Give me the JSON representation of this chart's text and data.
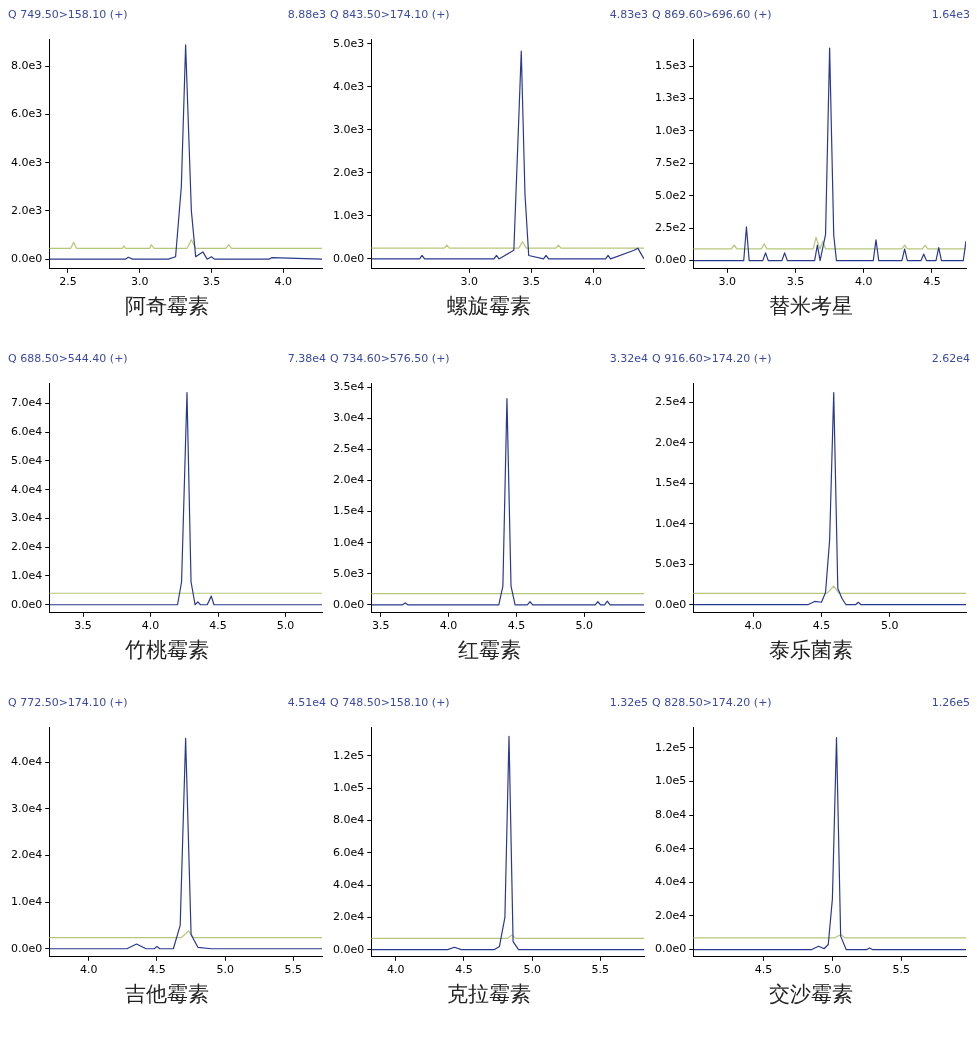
{
  "chart_data": [
    {
      "type": "line",
      "title": "Q 749.50>158.10 (+)",
      "annotations": [
        "8.88e3"
      ],
      "xlabel": "阿奇霉素",
      "xlim": [
        2.37,
        4.27
      ],
      "xticks": [
        2.5,
        {
          "value": 3,
          "label": "3.0"
        },
        3.5,
        {
          "value": 4,
          "label": "4.0"
        }
      ],
      "ylim": [
        -400,
        9100
      ],
      "yticks": [
        {
          "value": 0,
          "label": "0.0e0"
        },
        {
          "value": 2000,
          "label": "2.0e3"
        },
        {
          "value": 4000,
          "label": "4.0e3"
        },
        {
          "value": 6000,
          "label": "6.0e3"
        },
        {
          "value": 8000,
          "label": "8.0e3"
        }
      ],
      "series": [
        {
          "color": "#2a3990",
          "x": [
            2.37,
            2.9,
            2.92,
            2.95,
            3.0,
            3.2,
            3.25,
            3.29,
            3.32,
            3.36,
            3.39,
            3.44,
            3.47,
            3.5,
            3.52,
            3.9,
            3.92,
            4.27
          ],
          "values": [
            0,
            0,
            80,
            0,
            0,
            0,
            100,
            3000,
            8880,
            2000,
            100,
            300,
            0,
            100,
            0,
            0,
            60,
            0
          ]
        },
        {
          "color": "#b5c77a",
          "x": [
            2.37,
            2.52,
            2.54,
            2.56,
            2.88,
            2.89,
            2.9,
            3.07,
            3.08,
            3.1,
            3.33,
            3.36,
            3.39,
            3.6,
            3.62,
            3.64,
            4.27
          ],
          "values": [
            450,
            450,
            700,
            450,
            450,
            550,
            450,
            450,
            600,
            450,
            450,
            800,
            450,
            450,
            600,
            450,
            450
          ]
        }
      ]
    },
    {
      "type": "line",
      "title": "Q 843.50>174.10 (+)",
      "annotations": [
        "4.83e3"
      ],
      "xlabel": "螺旋霉素",
      "xlim": [
        2.21,
        4.41
      ],
      "xticks": [
        {
          "value": 3,
          "label": "3.0"
        },
        3.5,
        {
          "value": 4,
          "label": "4.0"
        }
      ],
      "ylim": [
        -230,
        5100
      ],
      "yticks": [
        {
          "value": 0,
          "label": "0.0e0"
        },
        {
          "value": 1000,
          "label": "1.0e3"
        },
        {
          "value": 2000,
          "label": "2.0e3"
        },
        {
          "value": 3000,
          "label": "3.0e3"
        },
        {
          "value": 4000,
          "label": "4.0e3"
        },
        {
          "value": 5000,
          "label": "5.0e3"
        }
      ],
      "series": [
        {
          "color": "#2a3990",
          "x": [
            2.21,
            2.6,
            2.62,
            2.64,
            3.2,
            3.22,
            3.24,
            3.36,
            3.39,
            3.42,
            3.45,
            3.48,
            3.6,
            3.62,
            3.64,
            4.1,
            4.12,
            4.14,
            4.33,
            4.36,
            4.39,
            4.41
          ],
          "values": [
            0,
            0,
            80,
            0,
            0,
            80,
            0,
            200,
            2500,
            4830,
            1500,
            80,
            0,
            80,
            0,
            0,
            80,
            0,
            200,
            250,
            100,
            0
          ]
        },
        {
          "color": "#b5c77a",
          "x": [
            2.21,
            2.8,
            2.82,
            2.84,
            3.4,
            3.43,
            3.46,
            3.7,
            3.72,
            3.74,
            4.41
          ],
          "values": [
            250,
            250,
            320,
            250,
            250,
            400,
            250,
            250,
            320,
            250,
            250
          ]
        }
      ]
    },
    {
      "type": "line",
      "title": "Q 869.60>696.60 (+)",
      "annotations": [
        "1.64e3"
      ],
      "xlabel": "替米考星",
      "xlim": [
        2.75,
        4.75
      ],
      "xticks": [
        {
          "value": 3,
          "label": "3.0"
        },
        3.5,
        {
          "value": 4,
          "label": "4.0"
        },
        4.5
      ],
      "ylim": [
        -63,
        1705
      ],
      "yticks": [
        {
          "value": 0,
          "label": "0.0e0"
        },
        {
          "value": 250,
          "label": "2.5e2"
        },
        {
          "value": 500,
          "label": "5.0e2"
        },
        {
          "value": 750,
          "label": "7.5e2"
        },
        {
          "value": 1000,
          "label": "1.0e3"
        },
        {
          "value": 1250,
          "label": "1.3e3"
        },
        {
          "value": 1500,
          "label": "1.5e3"
        }
      ],
      "series": [
        {
          "color": "#2a3990",
          "x": [
            2.75,
            3.12,
            3.14,
            3.16,
            3.26,
            3.28,
            3.3,
            3.4,
            3.42,
            3.44,
            3.64,
            3.66,
            3.68,
            3.72,
            3.75,
            3.78,
            3.8,
            4.07,
            4.09,
            4.11,
            4.28,
            4.3,
            4.32,
            4.42,
            4.44,
            4.46,
            4.53,
            4.55,
            4.57,
            4.73,
            4.75
          ],
          "values": [
            0,
            0,
            260,
            0,
            0,
            60,
            0,
            0,
            60,
            0,
            0,
            120,
            0,
            200,
            1640,
            200,
            0,
            0,
            160,
            0,
            0,
            90,
            0,
            0,
            50,
            0,
            0,
            100,
            0,
            0,
            150
          ]
        },
        {
          "color": "#b5c77a",
          "x": [
            2.75,
            3.03,
            3.05,
            3.07,
            3.25,
            3.27,
            3.29,
            3.63,
            3.65,
            3.68,
            3.7,
            3.72,
            4.28,
            4.3,
            4.32,
            4.43,
            4.45,
            4.47,
            4.75
          ],
          "values": [
            90,
            90,
            120,
            90,
            90,
            130,
            90,
            90,
            180,
            90,
            150,
            90,
            90,
            120,
            90,
            90,
            120,
            90,
            90
          ]
        }
      ]
    },
    {
      "type": "line",
      "title": "Q 688.50>544.40 (+)",
      "annotations": [
        "7.38e4"
      ],
      "xlabel": "竹桃霉素",
      "xlim": [
        3.25,
        5.27
      ],
      "xticks": [
        3.5,
        {
          "value": 4,
          "label": "4.0"
        },
        4.5,
        {
          "value": 5,
          "label": "5.0"
        }
      ],
      "ylim": [
        -2800,
        76900
      ],
      "yticks": [
        {
          "value": 0,
          "label": "0.0e0"
        },
        {
          "value": 10000,
          "label": "1.0e4"
        },
        {
          "value": 20000,
          "label": "2.0e4"
        },
        {
          "value": 30000,
          "label": "3.0e4"
        },
        {
          "value": 40000,
          "label": "4.0e4"
        },
        {
          "value": 50000,
          "label": "5.0e4"
        },
        {
          "value": 60000,
          "label": "6.0e4"
        },
        {
          "value": 70000,
          "label": "7.0e4"
        }
      ],
      "series": [
        {
          "color": "#2a3990",
          "x": [
            3.25,
            4.2,
            4.23,
            4.27,
            4.3,
            4.33,
            4.35,
            4.37,
            4.42,
            4.45,
            4.47,
            5.27
          ],
          "values": [
            0,
            0,
            8000,
            73800,
            8000,
            0,
            1000,
            0,
            0,
            3000,
            0,
            0
          ]
        },
        {
          "color": "#b5c77a",
          "x": [
            3.25,
            5.27
          ],
          "values": [
            4000,
            4000
          ]
        }
      ]
    },
    {
      "type": "line",
      "title": "Q 734.60>576.50 (+)",
      "annotations": [
        "3.32e4"
      ],
      "xlabel": "红霉素",
      "xlim": [
        3.43,
        5.44
      ],
      "xticks": [
        3.5,
        {
          "value": 4,
          "label": "4.0"
        },
        4.5,
        {
          "value": 5,
          "label": "5.0"
        }
      ],
      "ylim": [
        -1280,
        35600
      ],
      "yticks": [
        {
          "value": 0,
          "label": "0.0e0"
        },
        {
          "value": 5000,
          "label": "5.0e3"
        },
        {
          "value": 10000,
          "label": "1.0e4"
        },
        {
          "value": 15000,
          "label": "1.5e4"
        },
        {
          "value": 20000,
          "label": "2.0e4"
        },
        {
          "value": 25000,
          "label": "2.5e4"
        },
        {
          "value": 30000,
          "label": "3.0e4"
        },
        {
          "value": 35000,
          "label": "3.5e4"
        }
      ],
      "series": [
        {
          "color": "#2a3990",
          "x": [
            3.43,
            3.66,
            3.68,
            3.7,
            4.37,
            4.4,
            4.43,
            4.46,
            4.49,
            4.58,
            4.6,
            4.62,
            5.08,
            5.1,
            5.12,
            5.15,
            5.17,
            5.19,
            5.44
          ],
          "values": [
            0,
            0,
            300,
            0,
            0,
            3000,
            33200,
            3000,
            0,
            0,
            500,
            0,
            0,
            500,
            0,
            0,
            600,
            0,
            0
          ]
        },
        {
          "color": "#b5c77a",
          "x": [
            3.43,
            5.44
          ],
          "values": [
            1800,
            1800
          ]
        }
      ]
    },
    {
      "type": "line",
      "title": "Q 916.60>174.20 (+)",
      "annotations": [
        "2.62e4"
      ],
      "xlabel": "泰乐菌素",
      "xlim": [
        3.56,
        5.56
      ],
      "xticks": [
        {
          "value": 4,
          "label": "4.0"
        },
        4.5,
        {
          "value": 5,
          "label": "5.0"
        }
      ],
      "ylim": [
        -1000,
        27300
      ],
      "yticks": [
        {
          "value": 0,
          "label": "0.0e0"
        },
        {
          "value": 5000,
          "label": "5.0e3"
        },
        {
          "value": 10000,
          "label": "1.0e4"
        },
        {
          "value": 15000,
          "label": "1.5e4"
        },
        {
          "value": 20000,
          "label": "2.0e4"
        },
        {
          "value": 25000,
          "label": "2.5e4"
        }
      ],
      "series": [
        {
          "color": "#2a3990",
          "x": [
            3.56,
            4.4,
            4.45,
            4.5,
            4.53,
            4.56,
            4.59,
            4.62,
            4.65,
            4.68,
            4.75,
            4.77,
            4.79,
            5.56
          ],
          "values": [
            0,
            0,
            400,
            300,
            1500,
            8000,
            26200,
            2000,
            800,
            0,
            0,
            300,
            0,
            0
          ]
        },
        {
          "color": "#b5c77a",
          "x": [
            3.56,
            4.54,
            4.59,
            4.63,
            5.56
          ],
          "values": [
            1400,
            1400,
            2300,
            1400,
            1400
          ]
        }
      ]
    },
    {
      "type": "line",
      "title": "Q 772.50>174.10 (+)",
      "annotations": [
        "4.51e4"
      ],
      "xlabel": "吉他霉素",
      "xlim": [
        3.71,
        5.71
      ],
      "xticks": [
        {
          "value": 4,
          "label": "4.0"
        },
        4.5,
        {
          "value": 5,
          "label": "5.0"
        },
        5.5
      ],
      "ylim": [
        -1730,
        47400
      ],
      "yticks": [
        {
          "value": 0,
          "label": "0.0e0"
        },
        {
          "value": 10000,
          "label": "1.0e4"
        },
        {
          "value": 20000,
          "label": "2.0e4"
        },
        {
          "value": 30000,
          "label": "3.0e4"
        },
        {
          "value": 40000,
          "label": "4.0e4"
        }
      ],
      "series": [
        {
          "color": "#2a3990",
          "x": [
            3.71,
            4.28,
            4.35,
            4.42,
            4.48,
            4.5,
            4.52,
            4.62,
            4.67,
            4.71,
            4.75,
            4.8,
            4.9,
            5.71
          ],
          "values": [
            0,
            0,
            1000,
            0,
            0,
            500,
            0,
            0,
            5000,
            45100,
            3000,
            300,
            0,
            0
          ]
        },
        {
          "color": "#b5c77a",
          "x": [
            3.71,
            4.68,
            4.73,
            4.77,
            5.71
          ],
          "values": [
            2400,
            2400,
            3800,
            2400,
            2400
          ]
        }
      ]
    },
    {
      "type": "line",
      "title": "Q 748.50>158.10 (+)",
      "annotations": [
        "1.32e5"
      ],
      "xlabel": "克拉霉素",
      "xlim": [
        3.82,
        5.82
      ],
      "xticks": [
        {
          "value": 4,
          "label": "4.0"
        },
        4.5,
        {
          "value": 5,
          "label": "5.0"
        },
        5.5
      ],
      "ylim": [
        -4400,
        137400
      ],
      "yticks": [
        {
          "value": 0,
          "label": "0.0e0"
        },
        {
          "value": 20000,
          "label": "2.0e4"
        },
        {
          "value": 40000,
          "label": "4.0e4"
        },
        {
          "value": 60000,
          "label": "6.0e4"
        },
        {
          "value": 80000,
          "label": "8.0e4"
        },
        {
          "value": 100000,
          "label": "1.0e5"
        },
        {
          "value": 120000,
          "label": "1.2e5"
        }
      ],
      "series": [
        {
          "color": "#2a3990",
          "x": [
            3.82,
            4.38,
            4.43,
            4.48,
            4.72,
            4.76,
            4.8,
            4.83,
            4.86,
            4.9,
            5.82
          ],
          "values": [
            0,
            0,
            1500,
            0,
            0,
            2000,
            20000,
            132000,
            5000,
            0,
            0
          ]
        },
        {
          "color": "#b5c77a",
          "x": [
            3.82,
            4.82,
            4.85,
            4.88,
            5.82
          ],
          "values": [
            7000,
            7000,
            9000,
            7000,
            7000
          ]
        }
      ]
    },
    {
      "type": "line",
      "title": "Q 828.50>174.20 (+)",
      "annotations": [
        "1.26e5"
      ],
      "xlabel": "交沙霉素",
      "xlim": [
        3.99,
        5.97
      ],
      "xticks": [
        4.5,
        {
          "value": 5,
          "label": "5.0"
        },
        5.5
      ],
      "ylim": [
        -4300,
        132000
      ],
      "yticks": [
        {
          "value": 0,
          "label": "0.0e0"
        },
        {
          "value": 20000,
          "label": "2.0e4"
        },
        {
          "value": 40000,
          "label": "4.0e4"
        },
        {
          "value": 60000,
          "label": "6.0e4"
        },
        {
          "value": 80000,
          "label": "8.0e4"
        },
        {
          "value": 100000,
          "label": "1.0e5"
        },
        {
          "value": 120000,
          "label": "1.2e5"
        }
      ],
      "series": [
        {
          "color": "#2a3990",
          "x": [
            3.99,
            4.85,
            4.9,
            4.94,
            4.97,
            5.0,
            5.03,
            5.06,
            5.1,
            5.2,
            5.25,
            5.27,
            5.29,
            5.97
          ],
          "values": [
            0,
            0,
            2000,
            500,
            3000,
            30000,
            126000,
            8000,
            0,
            0,
            0,
            1000,
            0,
            0
          ]
        },
        {
          "color": "#b5c77a",
          "x": [
            3.99,
            5.02,
            5.06,
            5.09,
            5.97
          ],
          "values": [
            7000,
            7000,
            9000,
            7000,
            7000
          ]
        }
      ]
    }
  ]
}
